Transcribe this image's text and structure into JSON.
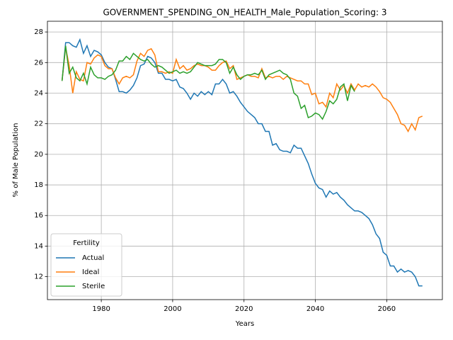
{
  "chart_data": {
    "type": "line",
    "title": "GOVERNMENT_SPENDING_ON_HEALTH_Male_Population_Scoring: 3",
    "x_label": "Years",
    "y_label": "% of Male Population",
    "legend_title": "Fertility",
    "legend": "lower left",
    "grid": true,
    "x": [
      1969,
      1970,
      1971,
      1972,
      1973,
      1974,
      1975,
      1976,
      1977,
      1978,
      1979,
      1980,
      1981,
      1982,
      1983,
      1984,
      1985,
      1986,
      1987,
      1988,
      1989,
      1990,
      1991,
      1992,
      1993,
      1994,
      1995,
      1996,
      1997,
      1998,
      1999,
      2000,
      2001,
      2002,
      2003,
      2004,
      2005,
      2006,
      2007,
      2008,
      2009,
      2010,
      2011,
      2012,
      2013,
      2014,
      2015,
      2016,
      2017,
      2018,
      2019,
      2020,
      2021,
      2022,
      2023,
      2024,
      2025,
      2026,
      2027,
      2028,
      2029,
      2030,
      2031,
      2032,
      2033,
      2034,
      2035,
      2036,
      2037,
      2038,
      2039,
      2040,
      2041,
      2042,
      2043,
      2044,
      2045,
      2046,
      2047,
      2048,
      2049,
      2050,
      2051,
      2052,
      2053,
      2054,
      2055,
      2056,
      2057,
      2058,
      2059,
      2060,
      2061,
      2062,
      2063,
      2064,
      2065,
      2066,
      2067,
      2068,
      2069,
      2070
    ],
    "series": [
      {
        "name": "Actual",
        "color": "#1f77b4",
        "values": [
          24.8,
          27.3,
          27.3,
          27.1,
          27.0,
          27.5,
          26.6,
          27.1,
          26.4,
          26.8,
          26.7,
          26.5,
          26.0,
          25.7,
          25.6,
          24.9,
          24.1,
          24.1,
          24.0,
          24.2,
          24.5,
          25.0,
          25.8,
          25.9,
          26.4,
          26.3,
          26.0,
          25.3,
          25.3,
          24.9,
          24.9,
          24.8,
          24.9,
          24.4,
          24.3,
          24.0,
          23.6,
          24.0,
          23.8,
          24.1,
          23.9,
          24.1,
          23.9,
          24.6,
          24.6,
          24.9,
          24.6,
          24.0,
          24.1,
          23.8,
          23.4,
          23.1,
          22.8,
          22.6,
          22.4,
          22.0,
          22.0,
          21.5,
          21.5,
          20.6,
          20.7,
          20.3,
          20.2,
          20.2,
          20.1,
          20.6,
          20.4,
          20.4,
          19.9,
          19.4,
          18.7,
          18.1,
          17.8,
          17.7,
          17.2,
          17.6,
          17.4,
          17.5,
          17.2,
          17.0,
          16.7,
          16.5,
          16.3,
          16.3,
          16.2,
          16.0,
          15.8,
          15.4,
          14.8,
          14.5,
          13.6,
          13.4,
          12.7,
          12.7,
          12.3,
          12.5,
          12.3,
          12.4,
          12.3,
          12.0,
          11.4,
          11.4
        ]
      },
      {
        "name": "Ideal",
        "color": "#ff7f0e",
        "values": [
          24.8,
          27.0,
          25.8,
          24.0,
          25.4,
          24.9,
          24.8,
          26.0,
          25.9,
          26.3,
          26.5,
          26.4,
          25.8,
          25.6,
          25.6,
          25.0,
          24.6,
          25.0,
          25.1,
          25.0,
          25.2,
          26.1,
          26.6,
          26.4,
          26.8,
          26.9,
          26.5,
          25.4,
          25.4,
          25.3,
          25.4,
          25.3,
          26.2,
          25.6,
          25.8,
          25.5,
          25.6,
          25.8,
          25.9,
          25.8,
          25.8,
          25.7,
          25.5,
          25.5,
          25.8,
          26.0,
          26.1,
          25.6,
          25.8,
          24.9,
          25.0,
          25.1,
          25.2,
          25.1,
          25.1,
          25.0,
          25.6,
          25.0,
          25.1,
          25.0,
          25.1,
          25.1,
          24.9,
          25.1,
          25.0,
          24.9,
          24.8,
          24.8,
          24.6,
          24.6,
          23.9,
          24.0,
          23.3,
          23.4,
          23.1,
          24.0,
          23.7,
          24.6,
          24.2,
          24.5,
          24.0,
          24.6,
          24.2,
          24.6,
          24.4,
          24.5,
          24.4,
          24.6,
          24.4,
          24.1,
          23.7,
          23.6,
          23.4,
          23.0,
          22.6,
          22.0,
          21.9,
          21.5,
          22.0,
          21.6,
          22.4,
          22.5
        ]
      },
      {
        "name": "Sterile",
        "color": "#2ca02c",
        "values": [
          24.8,
          27.1,
          25.3,
          25.7,
          25.0,
          24.8,
          25.3,
          24.6,
          25.7,
          25.2,
          25.0,
          25.0,
          24.9,
          25.1,
          25.2,
          25.5,
          26.1,
          26.1,
          26.4,
          26.2,
          26.6,
          26.4,
          26.2,
          26.1,
          26.2,
          25.9,
          25.7,
          25.8,
          25.7,
          25.5,
          25.3,
          25.4,
          25.5,
          25.3,
          25.4,
          25.3,
          25.4,
          25.7,
          26.0,
          25.9,
          25.8,
          25.8,
          25.8,
          25.9,
          26.2,
          26.2,
          26.0,
          25.3,
          25.7,
          25.2,
          24.9,
          25.1,
          25.2,
          25.2,
          25.3,
          25.2,
          25.5,
          24.9,
          25.2,
          25.3,
          25.4,
          25.5,
          25.3,
          25.2,
          24.9,
          24.0,
          23.8,
          23.0,
          23.2,
          22.4,
          22.5,
          22.7,
          22.6,
          22.3,
          22.8,
          23.5,
          23.3,
          23.6,
          24.4,
          24.6,
          23.5,
          24.5,
          24.1,
          null,
          null,
          null,
          null,
          null,
          null,
          null,
          null,
          null,
          null,
          null,
          null,
          null,
          null,
          null,
          null,
          null,
          null,
          null
        ]
      }
    ],
    "xlim": [
      1964.9,
      2075.6
    ],
    "xticks": [
      1980,
      2000,
      2020,
      2040,
      2060
    ],
    "ylim": [
      10.5,
      28.7
    ],
    "yticks": [
      12,
      14,
      16,
      18,
      20,
      22,
      24,
      26,
      28
    ]
  }
}
